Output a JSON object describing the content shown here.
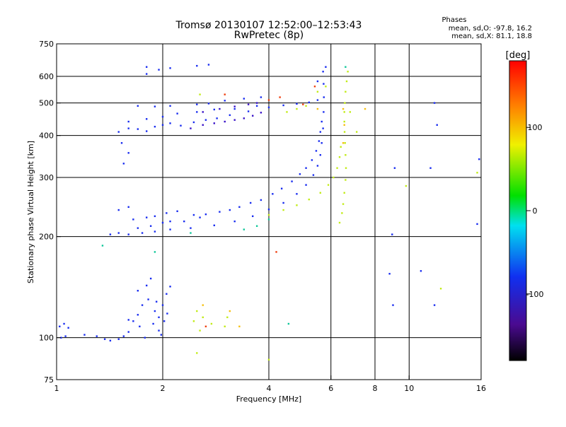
{
  "chart_data": {
    "type": "scatter",
    "title": "Tromsø 20130107 12:52:00–12:53:43",
    "subtitle": "RwPretec (8p)",
    "xlabel": "Frequency [MHz]",
    "ylabel": "Stationary phase Virtual Height [km]",
    "x_scale": "log",
    "y_scale": "log",
    "xlim": [
      1,
      16
    ],
    "ylim": [
      75,
      750
    ],
    "x_ticks": [
      1,
      2,
      4,
      6,
      8,
      10,
      16
    ],
    "y_ticks": [
      75,
      100,
      200,
      300,
      400,
      500,
      600,
      750
    ],
    "x_grid": [
      2,
      4,
      6,
      8,
      10
    ],
    "y_grid": [
      100,
      200,
      300,
      400,
      500,
      600
    ],
    "grid": true,
    "phase_stats": {
      "title": "Phases",
      "line_o": "mean, sd,O: -97.8, 16.2",
      "line_x": "mean, sd,X:  81.1, 18.8"
    },
    "colorbar": {
      "label": "[deg]",
      "min": -180,
      "max": 180,
      "ticks": [
        100,
        0,
        -100
      ],
      "placement": "right"
    },
    "series": [
      {
        "phase": -100,
        "color": "#1a2ef0",
        "points": [
          [
            1.02,
            108
          ],
          [
            1.05,
            110
          ],
          [
            1.08,
            107
          ],
          [
            1.03,
            100
          ],
          [
            1.06,
            101
          ],
          [
            1.2,
            102
          ],
          [
            1.3,
            101
          ],
          [
            1.37,
            99
          ],
          [
            1.42,
            98
          ],
          [
            1.5,
            99
          ],
          [
            1.55,
            101
          ],
          [
            1.6,
            104
          ],
          [
            1.65,
            112
          ],
          [
            1.7,
            117
          ],
          [
            1.75,
            125
          ],
          [
            1.82,
            130
          ],
          [
            1.9,
            120
          ],
          [
            1.95,
            115
          ],
          [
            2.0,
            125
          ],
          [
            2.05,
            135
          ],
          [
            2.1,
            142
          ],
          [
            1.7,
            138
          ],
          [
            1.8,
            143
          ],
          [
            1.85,
            150
          ],
          [
            1.88,
            110
          ],
          [
            1.95,
            105
          ],
          [
            2.02,
            112
          ],
          [
            1.6,
            113
          ],
          [
            1.72,
            108
          ],
          [
            1.78,
            100
          ],
          [
            1.92,
            128
          ],
          [
            2.06,
            118
          ],
          [
            1.98,
            102
          ],
          [
            1.42,
            203
          ],
          [
            1.5,
            205
          ],
          [
            1.6,
            203
          ],
          [
            1.75,
            205
          ],
          [
            1.9,
            207
          ],
          [
            2.1,
            210
          ],
          [
            2.4,
            212
          ],
          [
            2.8,
            216
          ],
          [
            3.2,
            222
          ],
          [
            3.6,
            230
          ],
          [
            4.0,
            241
          ],
          [
            4.4,
            252
          ],
          [
            4.8,
            268
          ],
          [
            5.1,
            285
          ],
          [
            5.35,
            305
          ],
          [
            5.5,
            325
          ],
          [
            5.6,
            350
          ],
          [
            5.65,
            380
          ],
          [
            5.7,
            420
          ],
          [
            5.72,
            470
          ],
          [
            5.73,
            520
          ],
          [
            5.72,
            570
          ],
          [
            5.7,
            620
          ],
          [
            1.5,
            240
          ],
          [
            1.65,
            225
          ],
          [
            1.8,
            228
          ],
          [
            1.9,
            230
          ],
          [
            2.05,
            235
          ],
          [
            2.2,
            238
          ],
          [
            2.45,
            232
          ],
          [
            2.65,
            233
          ],
          [
            2.9,
            237
          ],
          [
            3.1,
            240
          ],
          [
            3.3,
            245
          ],
          [
            3.55,
            252
          ],
          [
            3.8,
            257
          ],
          [
            4.1,
            268
          ],
          [
            4.35,
            278
          ],
          [
            4.65,
            292
          ],
          [
            4.9,
            307
          ],
          [
            5.1,
            320
          ],
          [
            5.3,
            338
          ],
          [
            5.45,
            360
          ],
          [
            5.55,
            385
          ],
          [
            5.6,
            410
          ],
          [
            5.65,
            440
          ],
          [
            1.6,
            245
          ],
          [
            1.7,
            212
          ],
          [
            1.85,
            215
          ],
          [
            2.0,
            220
          ],
          [
            2.1,
            222
          ],
          [
            2.3,
            222
          ],
          [
            2.55,
            228
          ],
          [
            1.5,
            410
          ],
          [
            1.6,
            420
          ],
          [
            1.7,
            418
          ],
          [
            1.8,
            412
          ],
          [
            1.9,
            425
          ],
          [
            2.0,
            430
          ],
          [
            2.1,
            435
          ],
          [
            2.25,
            428
          ],
          [
            2.45,
            438
          ],
          [
            2.65,
            445
          ],
          [
            2.85,
            450
          ],
          [
            3.1,
            460
          ],
          [
            3.5,
            472
          ],
          [
            4.0,
            485
          ],
          [
            4.4,
            492
          ],
          [
            4.8,
            497
          ],
          [
            5.2,
            502
          ],
          [
            5.5,
            510
          ],
          [
            1.6,
            440
          ],
          [
            1.8,
            448
          ],
          [
            2.0,
            455
          ],
          [
            2.2,
            465
          ],
          [
            2.5,
            470
          ],
          [
            2.8,
            478
          ],
          [
            3.2,
            480
          ],
          [
            3.7,
            490
          ],
          [
            1.7,
            490
          ],
          [
            1.9,
            488
          ],
          [
            2.1,
            490
          ],
          [
            2.5,
            495
          ],
          [
            2.7,
            498
          ],
          [
            3.0,
            508
          ],
          [
            3.4,
            515
          ],
          [
            3.8,
            520
          ],
          [
            1.8,
            640
          ],
          [
            1.95,
            628
          ],
          [
            2.1,
            635
          ],
          [
            2.5,
            645
          ],
          [
            2.7,
            650
          ],
          [
            5.8,
            640
          ],
          [
            5.5,
            580
          ],
          [
            1.55,
            330
          ],
          [
            1.6,
            355
          ],
          [
            1.53,
            380
          ],
          [
            1.8,
            610
          ],
          [
            8.8,
            155
          ],
          [
            9.0,
            125
          ],
          [
            9.1,
            320
          ],
          [
            10.8,
            158
          ],
          [
            11.5,
            320
          ],
          [
            11.8,
            125
          ],
          [
            11.8,
            500
          ],
          [
            12.0,
            430
          ],
          [
            15.6,
            218
          ],
          [
            15.8,
            340
          ],
          [
            8.95,
            203
          ]
        ]
      },
      {
        "phase": -130,
        "color": "#3a13c8",
        "points": [
          [
            2.4,
            420
          ],
          [
            2.6,
            430
          ],
          [
            2.8,
            435
          ],
          [
            3.0,
            440
          ],
          [
            3.2,
            445
          ],
          [
            3.4,
            450
          ],
          [
            3.6,
            458
          ],
          [
            3.8,
            468
          ],
          [
            2.6,
            470
          ],
          [
            2.9,
            480
          ],
          [
            3.2,
            488
          ],
          [
            3.5,
            495
          ],
          [
            3.7,
            500
          ]
        ]
      },
      {
        "phase": 20,
        "color": "#10c89a",
        "points": [
          [
            1.9,
            180
          ],
          [
            2.4,
            205
          ],
          [
            3.4,
            210
          ],
          [
            3.7,
            215
          ],
          [
            4.0,
            225
          ],
          [
            6.6,
            640
          ],
          [
            4.55,
            110
          ],
          [
            1.35,
            188
          ]
        ]
      },
      {
        "phase": 90,
        "color": "#c2ec18",
        "points": [
          [
            6.35,
            220
          ],
          [
            6.45,
            235
          ],
          [
            6.5,
            250
          ],
          [
            6.55,
            270
          ],
          [
            6.6,
            295
          ],
          [
            6.62,
            320
          ],
          [
            6.6,
            350
          ],
          [
            6.58,
            380
          ],
          [
            6.56,
            410
          ],
          [
            6.55,
            440
          ],
          [
            6.55,
            470
          ],
          [
            6.57,
            500
          ],
          [
            6.6,
            540
          ],
          [
            6.65,
            580
          ],
          [
            6.7,
            620
          ],
          [
            4.0,
            232
          ],
          [
            4.4,
            240
          ],
          [
            4.8,
            248
          ],
          [
            5.2,
            258
          ],
          [
            5.6,
            270
          ],
          [
            5.9,
            285
          ],
          [
            6.1,
            300
          ],
          [
            6.25,
            320
          ],
          [
            6.35,
            345
          ],
          [
            6.4,
            370
          ],
          [
            2.45,
            112
          ],
          [
            2.5,
            120
          ],
          [
            2.55,
            105
          ],
          [
            2.6,
            115
          ],
          [
            2.75,
            110
          ],
          [
            3.0,
            108
          ],
          [
            3.05,
            115
          ],
          [
            2.5,
            90
          ],
          [
            4.0,
            86
          ],
          [
            4.5,
            470
          ],
          [
            4.8,
            480
          ],
          [
            5.1,
            490
          ],
          [
            5.5,
            540
          ],
          [
            5.8,
            560
          ],
          [
            6.8,
            470
          ],
          [
            7.1,
            410
          ],
          [
            9.8,
            283
          ],
          [
            15.6,
            310
          ],
          [
            12.3,
            140
          ],
          [
            2.55,
            530
          ]
        ]
      },
      {
        "phase": 120,
        "color": "#f6c010",
        "points": [
          [
            6.5,
            480
          ],
          [
            6.55,
            430
          ],
          [
            6.5,
            380
          ],
          [
            3.3,
            108
          ],
          [
            3.1,
            120
          ],
          [
            5.5,
            480
          ],
          [
            2.6,
            125
          ],
          [
            7.5,
            480
          ]
        ]
      },
      {
        "phase": 150,
        "color": "#f04010",
        "points": [
          [
            4.3,
            520
          ],
          [
            4.0,
            510
          ],
          [
            5.0,
            495
          ],
          [
            5.4,
            560
          ],
          [
            2.65,
            108
          ],
          [
            3.0,
            530
          ],
          [
            4.2,
            180
          ]
        ]
      }
    ]
  }
}
